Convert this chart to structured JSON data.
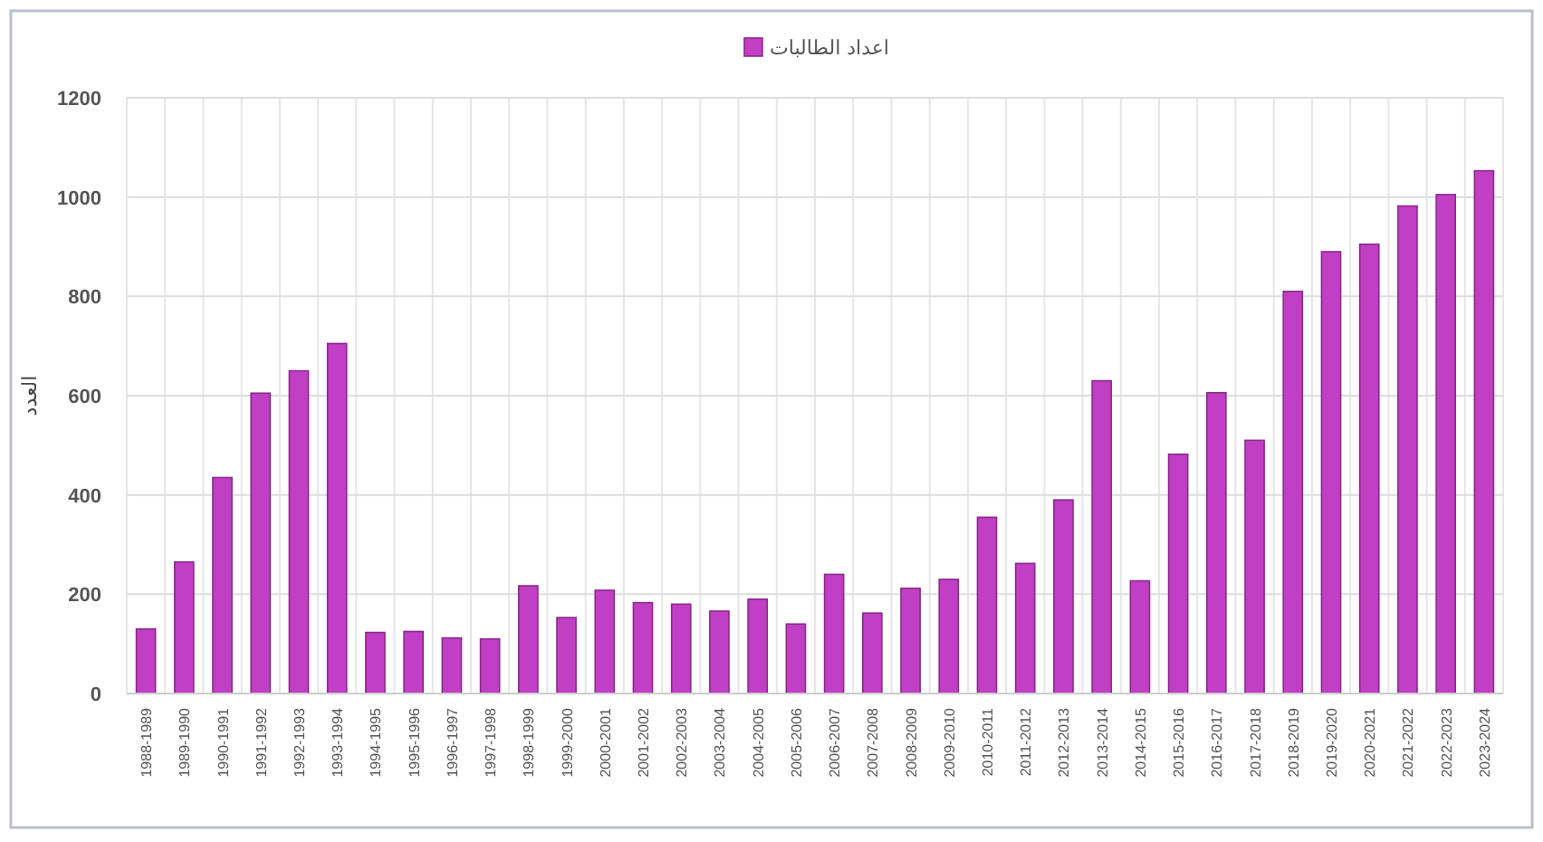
{
  "chart_data": {
    "type": "bar",
    "ylabel": "العدد",
    "legend": "top",
    "categories": [
      "1988-1989",
      "1989-1990",
      "1990-1991",
      "1991-1992",
      "1992-1993",
      "1993-1994",
      "1994-1995",
      "1995-1996",
      "1996-1997",
      "1997-1998",
      "1998-1999",
      "1999-2000",
      "2000-2001",
      "2001-2002",
      "2002-2003",
      "2003-2004",
      "2004-2005",
      "2005-2006",
      "2006-2007",
      "2007-2008",
      "2008-2009",
      "2009-2010",
      "2010-2011",
      "2011-2012",
      "2012-2013",
      "2013-2014",
      "2014-2015",
      "2015-2016",
      "2016-2017",
      "2017-2018",
      "2018-2019",
      "2019-2020",
      "2020-2021",
      "2021-2022",
      "2022-2023",
      "2023-2024"
    ],
    "series": [
      {
        "name": "اعداد الطالبات",
        "color": "#c13fc4",
        "values": [
          130,
          265,
          435,
          605,
          650,
          705,
          123,
          125,
          112,
          110,
          217,
          153,
          208,
          183,
          180,
          166,
          190,
          140,
          240,
          162,
          212,
          230,
          355,
          262,
          390,
          630,
          227,
          482,
          606,
          510,
          810,
          890,
          905,
          982,
          1005,
          1053
        ]
      }
    ],
    "ylim": [
      0,
      1200
    ],
    "yticks": [
      0,
      200,
      400,
      600,
      800,
      1000,
      1200
    ],
    "grid": true
  }
}
